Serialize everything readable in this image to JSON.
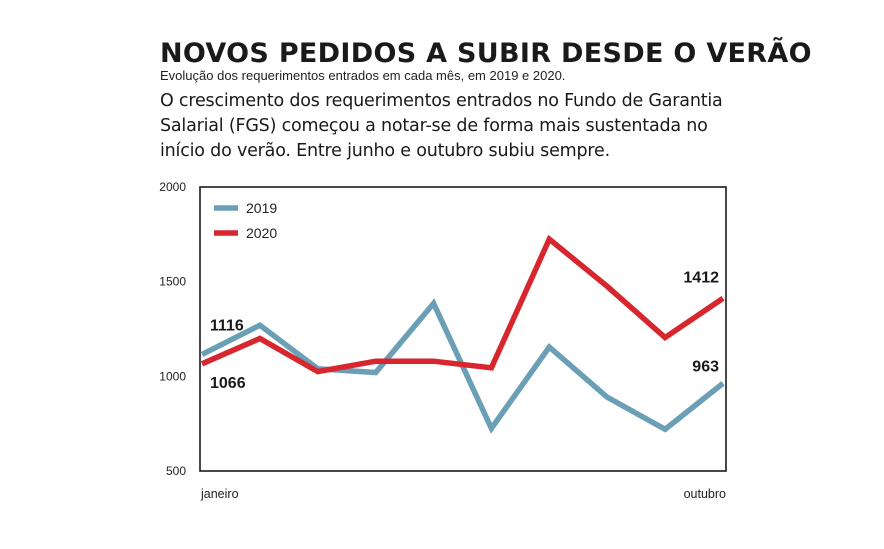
{
  "header": {
    "title": "NOVOS PEDIDOS A SUBIR DESDE O VERÃO",
    "subtitle": "Evolução dos requerimentos entrados em cada mês, em 2019 e 2020.",
    "lead": "O crescimento dos requerimentos entrados no Fundo de Garantia Salarial (FGS) começou a notar-se de forma mais sustentada no início do verão. Entre junho e outubro subiu sempre."
  },
  "chart_data": {
    "type": "line",
    "x": [
      "janeiro",
      "",
      "",
      "",
      "",
      "",
      "",
      "",
      "",
      "outubro"
    ],
    "xtick_labels": [
      "janeiro",
      "outubro"
    ],
    "ylim": [
      500,
      2000
    ],
    "yticks": [
      500,
      1000,
      1500,
      2000
    ],
    "grid": false,
    "legend_position": "top-left",
    "series": [
      {
        "name": "2019",
        "color": "#6a9fb5",
        "values": [
          1116,
          1270,
          1040,
          1020,
          1385,
          725,
          1155,
          890,
          720,
          963
        ]
      },
      {
        "name": "2020",
        "color": "#d7262e",
        "values": [
          1066,
          1200,
          1025,
          1080,
          1080,
          1045,
          1725,
          1475,
          1205,
          1412
        ]
      }
    ],
    "annotations": [
      {
        "series": "2019",
        "index": 0,
        "text": "1116"
      },
      {
        "series": "2020",
        "index": 0,
        "text": "1066"
      },
      {
        "series": "2020",
        "index": 9,
        "text": "1412"
      },
      {
        "series": "2019",
        "index": 9,
        "text": "963"
      }
    ]
  }
}
